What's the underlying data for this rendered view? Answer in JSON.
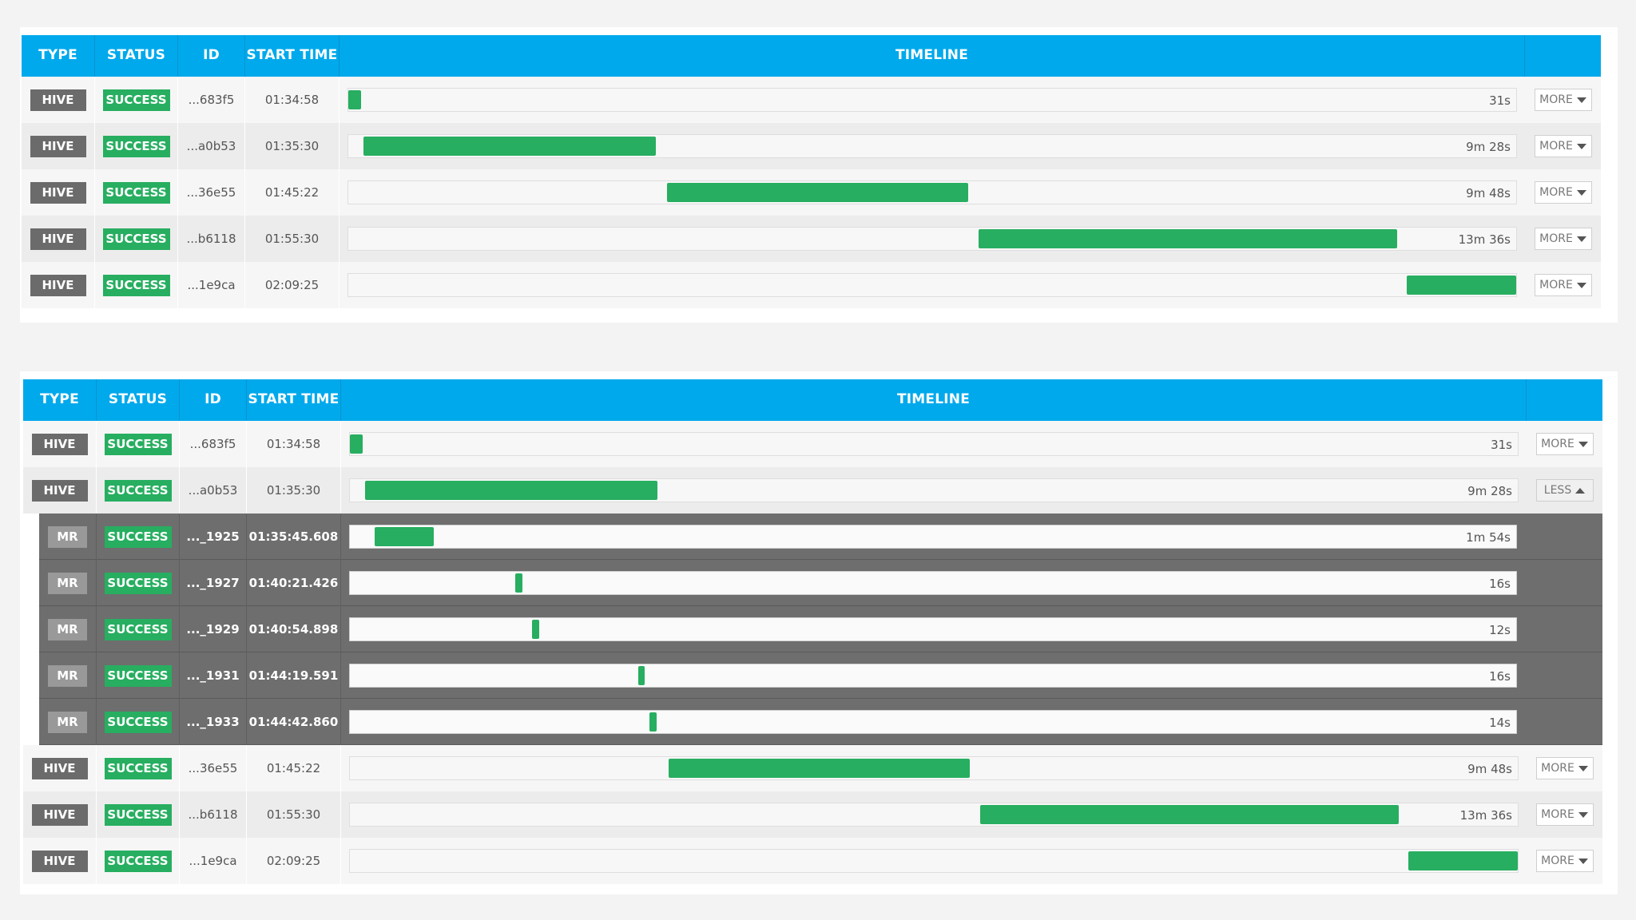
{
  "headers": {
    "type": "TYPE",
    "status": "STATUS",
    "id": "ID",
    "start_time": "START TIME",
    "timeline": "TIMELINE"
  },
  "colors": {
    "header_bg": "#00a9ec",
    "success": "#27ae60",
    "type_badge": "#6b6b6b",
    "mr_row_bg": "#6e6e6e"
  },
  "table1": {
    "rows": [
      {
        "type": "HIVE",
        "status": "SUCCESS",
        "id": "...683f5",
        "start": "01:34:58",
        "duration": "31s",
        "start_frac": 0.0,
        "end_frac": 0.011,
        "action": "MORE"
      },
      {
        "type": "HIVE",
        "status": "SUCCESS",
        "id": "...a0b53",
        "start": "01:35:30",
        "duration": "9m 28s",
        "start_frac": 0.013,
        "end_frac": 0.263,
        "action": "MORE"
      },
      {
        "type": "HIVE",
        "status": "SUCCESS",
        "id": "...36e55",
        "start": "01:45:22",
        "duration": "9m 48s",
        "start_frac": 0.273,
        "end_frac": 0.531,
        "action": "MORE"
      },
      {
        "type": "HIVE",
        "status": "SUCCESS",
        "id": "...b6118",
        "start": "01:55:30",
        "duration": "13m 36s",
        "start_frac": 0.54,
        "end_frac": 0.898,
        "action": "MORE"
      },
      {
        "type": "HIVE",
        "status": "SUCCESS",
        "id": "...1e9ca",
        "start": "02:09:25",
        "duration": "",
        "start_frac": 0.906,
        "end_frac": 1.0,
        "action": "MORE"
      }
    ]
  },
  "table2": {
    "rows_top": [
      {
        "type": "HIVE",
        "status": "SUCCESS",
        "id": "...683f5",
        "start": "01:34:58",
        "duration": "31s",
        "start_frac": 0.0,
        "end_frac": 0.011,
        "action": "MORE"
      },
      {
        "type": "HIVE",
        "status": "SUCCESS",
        "id": "...a0b53",
        "start": "01:35:30",
        "duration": "9m 28s",
        "start_frac": 0.013,
        "end_frac": 0.263,
        "action": "LESS"
      }
    ],
    "mr_rows": [
      {
        "type": "MR",
        "status": "SUCCESS",
        "id": "..._1925",
        "start": "01:35:45.608",
        "duration": "1m 54s",
        "start_frac": 0.021,
        "end_frac": 0.072
      },
      {
        "type": "MR",
        "status": "SUCCESS",
        "id": "..._1927",
        "start": "01:40:21.426",
        "duration": "16s",
        "start_frac": 0.142,
        "end_frac": 0.148
      },
      {
        "type": "MR",
        "status": "SUCCESS",
        "id": "..._1929",
        "start": "01:40:54.898",
        "duration": "12s",
        "start_frac": 0.156,
        "end_frac": 0.162
      },
      {
        "type": "MR",
        "status": "SUCCESS",
        "id": "..._1931",
        "start": "01:44:19.591",
        "duration": "16s",
        "start_frac": 0.247,
        "end_frac": 0.253
      },
      {
        "type": "MR",
        "status": "SUCCESS",
        "id": "..._1933",
        "start": "01:44:42.860",
        "duration": "14s",
        "start_frac": 0.257,
        "end_frac": 0.263
      }
    ],
    "rows_bottom": [
      {
        "type": "HIVE",
        "status": "SUCCESS",
        "id": "...36e55",
        "start": "01:45:22",
        "duration": "9m 48s",
        "start_frac": 0.273,
        "end_frac": 0.531,
        "action": "MORE"
      },
      {
        "type": "HIVE",
        "status": "SUCCESS",
        "id": "...b6118",
        "start": "01:55:30",
        "duration": "13m 36s",
        "start_frac": 0.54,
        "end_frac": 0.898,
        "action": "MORE"
      },
      {
        "type": "HIVE",
        "status": "SUCCESS",
        "id": "...1e9ca",
        "start": "02:09:25",
        "duration": "",
        "start_frac": 0.906,
        "end_frac": 1.0,
        "action": "MORE"
      }
    ]
  }
}
